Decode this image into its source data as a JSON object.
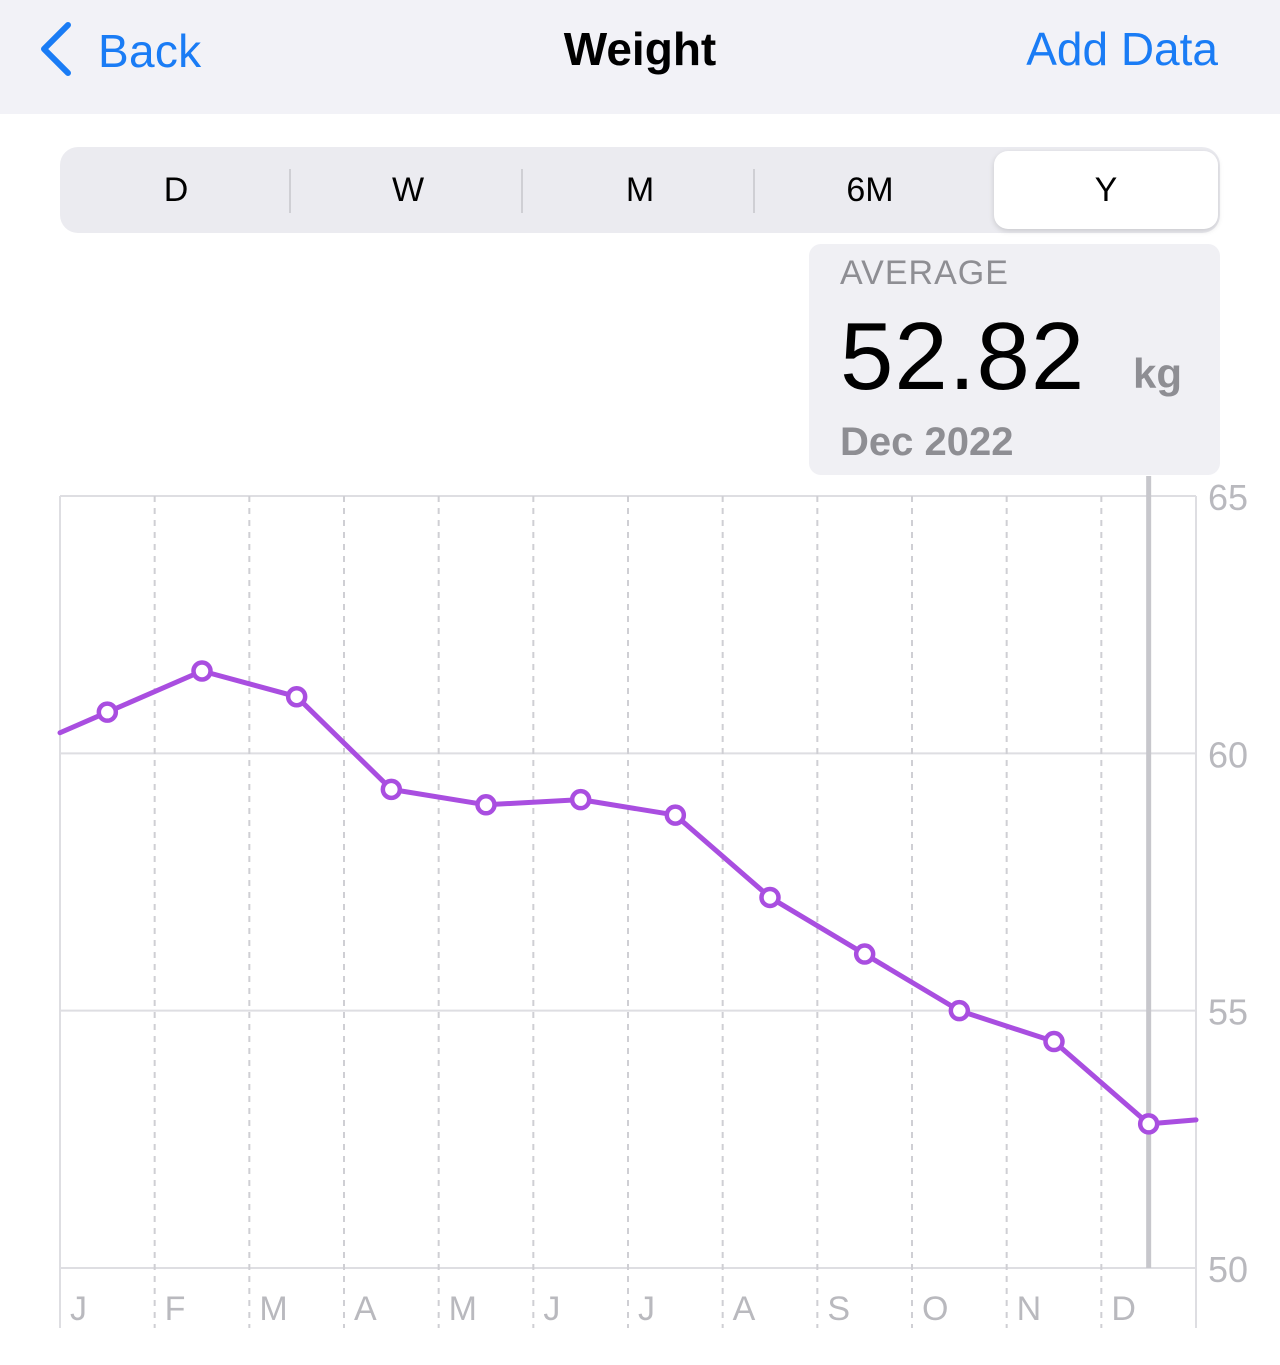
{
  "nav": {
    "back_label": "Back",
    "title": "Weight",
    "add_label": "Add Data"
  },
  "segments": [
    {
      "label": "D",
      "active": false
    },
    {
      "label": "W",
      "active": false
    },
    {
      "label": "M",
      "active": false
    },
    {
      "label": "6M",
      "active": false
    },
    {
      "label": "Y",
      "active": true
    }
  ],
  "summary": {
    "label": "AVERAGE",
    "value": "52.82",
    "unit": "kg",
    "period": "Dec 2022"
  },
  "colors": {
    "accent": "#1a7cf5",
    "series": "#a94ee0"
  },
  "chart_data": {
    "type": "line",
    "x_labels": [
      "J",
      "F",
      "M",
      "A",
      "M",
      "J",
      "J",
      "A",
      "S",
      "O",
      "N",
      "D"
    ],
    "y_ticks": [
      "65",
      "60",
      "55",
      "50"
    ],
    "ylim": [
      50,
      65
    ],
    "grid": true,
    "series": [
      {
        "values": [
          60.8,
          61.6,
          61.1,
          59.3,
          59.0,
          59.1,
          58.8,
          57.2,
          56.1,
          55.0,
          54.4,
          52.8
        ]
      }
    ],
    "selected_index": 11,
    "selected_value": 52.82
  }
}
